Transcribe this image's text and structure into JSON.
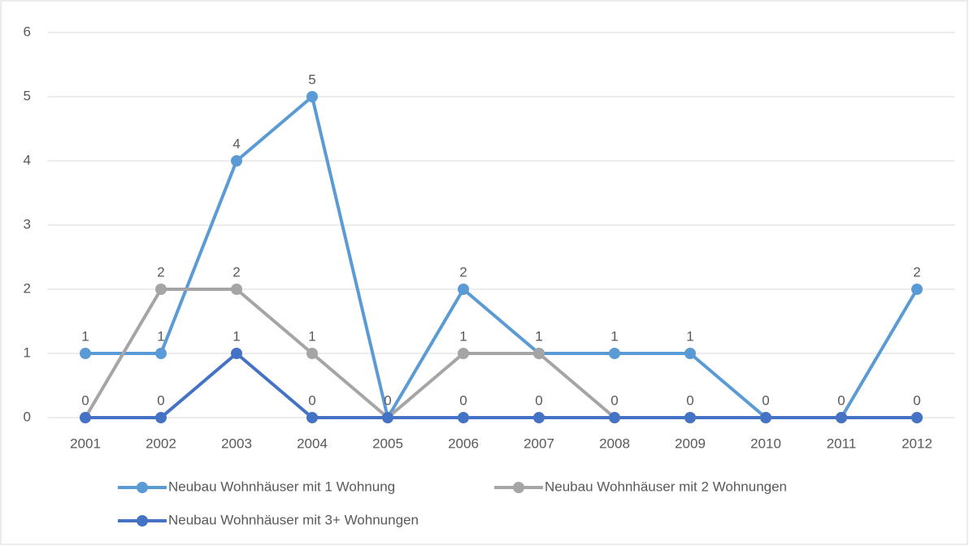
{
  "chart_data": {
    "type": "line",
    "categories": [
      "2001",
      "2002",
      "2003",
      "2004",
      "2005",
      "2006",
      "2007",
      "2008",
      "2009",
      "2010",
      "2011",
      "2012"
    ],
    "series": [
      {
        "name": "Neubau Wohnhäuser mit 1 Wohnung",
        "color": "#5b9bd5",
        "values": [
          1,
          1,
          4,
          5,
          0,
          2,
          1,
          1,
          1,
          0,
          0,
          2
        ]
      },
      {
        "name": "Neubau Wohnhäuser mit 2 Wohnungen",
        "color": "#a5a5a5",
        "values": [
          0,
          2,
          2,
          1,
          0,
          1,
          1,
          0,
          0,
          0,
          0,
          0
        ]
      },
      {
        "name": "Neubau Wohnhäuser mit 3+ Wohnungen",
        "color": "#4472c4",
        "values": [
          0,
          0,
          1,
          0,
          0,
          0,
          0,
          0,
          0,
          0,
          0,
          0
        ]
      }
    ],
    "ylim": [
      0,
      6
    ],
    "yticks": [
      0,
      1,
      2,
      3,
      4,
      5,
      6
    ],
    "grid": true,
    "legend": "bottom"
  }
}
